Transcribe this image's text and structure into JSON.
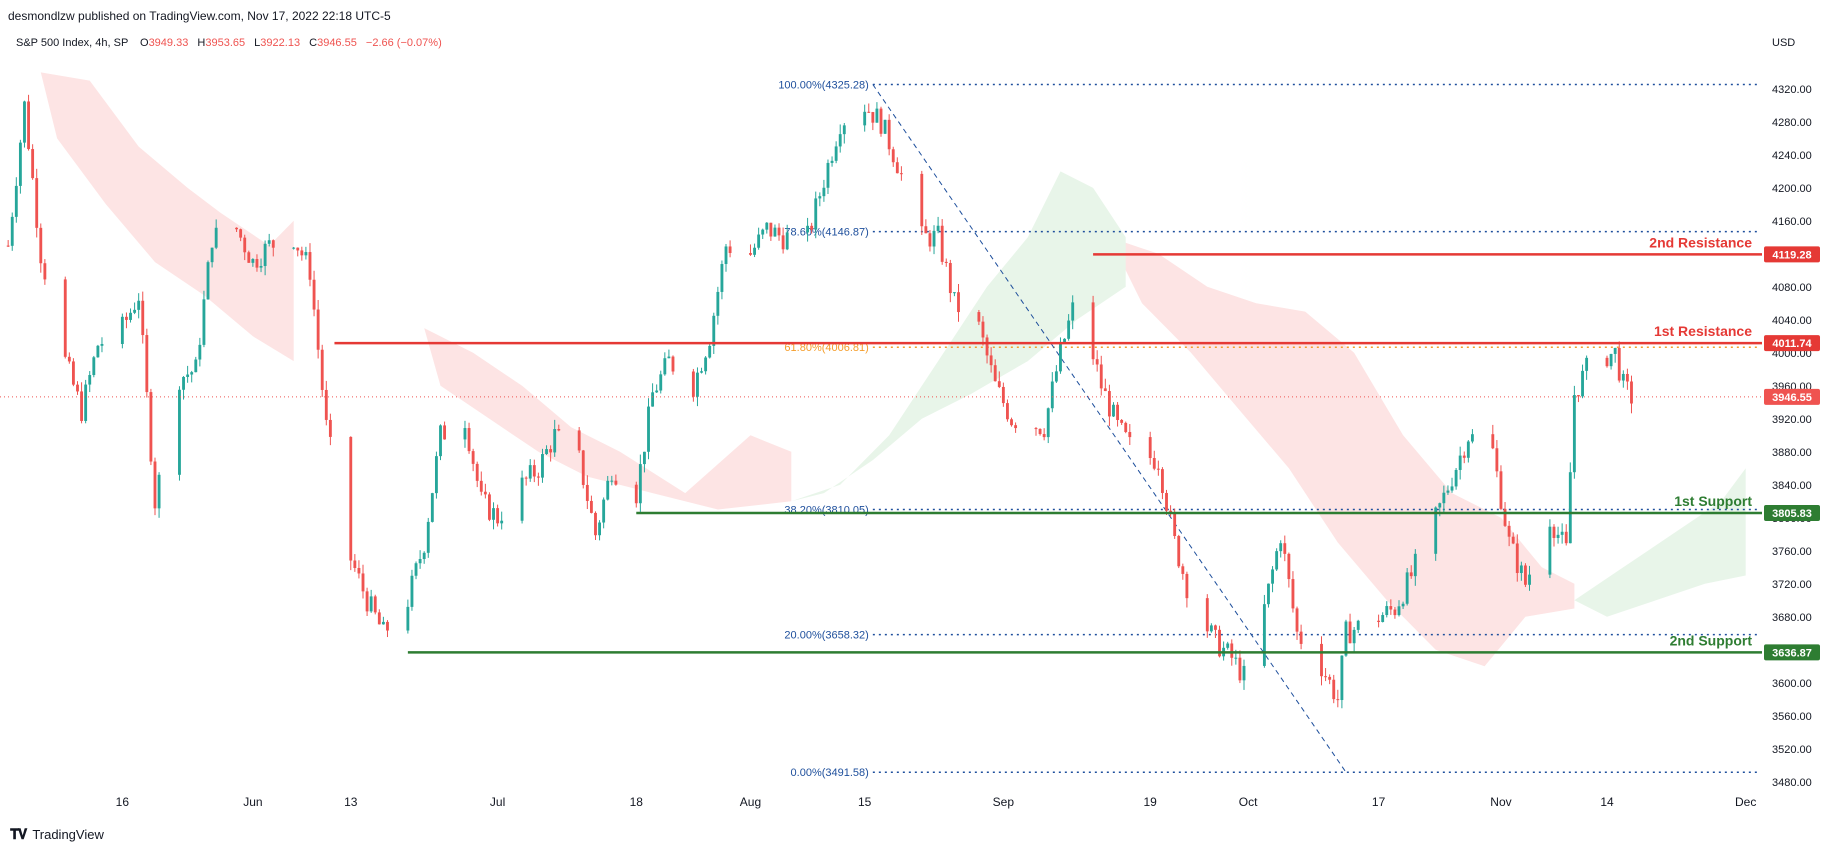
{
  "header": {
    "published": "desmondlzw published on TradingView.com, Nov 17, 2022 22:18 UTC-5"
  },
  "footer": {
    "brand": "TradingView"
  },
  "colors": {
    "up": "#26a69a",
    "down": "#ef5350",
    "cloud_up": "#e8f5e9",
    "cloud_down": "#fde4e4",
    "resistance": "#e53935",
    "support": "#2e7d32",
    "fib": "#1e4f9c",
    "fib_618": "#f59d2a"
  },
  "chart_data": {
    "type": "candlestick",
    "symbol_line": {
      "symbol": "S&P 500 Index, 4h, SP",
      "o_label": "O",
      "o": "3949.33",
      "h_label": "H",
      "h": "3953.65",
      "l_label": "L",
      "l": "3922.13",
      "c_label": "C",
      "c": "3946.55",
      "change": "−2.66 (−0.07%)"
    },
    "currency": "USD",
    "y_range": [
      3470,
      4355
    ],
    "y_ticks": [
      "4320.00",
      "4280.00",
      "4240.00",
      "4200.00",
      "4160.00",
      "4120.00",
      "4080.00",
      "4040.00",
      "4000.00",
      "3960.00",
      "3920.00",
      "3880.00",
      "3840.00",
      "3800.00",
      "3760.00",
      "3720.00",
      "3680.00",
      "3640.00",
      "3600.00",
      "3560.00",
      "3520.00",
      "3480.00"
    ],
    "x_range": [
      "2022-05-01",
      "2022-12-03"
    ],
    "x_ticks": [
      {
        "date": "2022-05-16",
        "label": "16"
      },
      {
        "date": "2022-06-01",
        "label": "Jun"
      },
      {
        "date": "2022-06-13",
        "label": "13"
      },
      {
        "date": "2022-07-01",
        "label": "Jul"
      },
      {
        "date": "2022-07-18",
        "label": "18"
      },
      {
        "date": "2022-08-01",
        "label": "Aug"
      },
      {
        "date": "2022-08-15",
        "label": "15"
      },
      {
        "date": "2022-09-01",
        "label": "Sep"
      },
      {
        "date": "2022-09-19",
        "label": "19"
      },
      {
        "date": "2022-10-01",
        "label": "Oct"
      },
      {
        "date": "2022-10-17",
        "label": "17"
      },
      {
        "date": "2022-11-01",
        "label": "Nov"
      },
      {
        "date": "2022-11-14",
        "label": "14"
      },
      {
        "date": "2022-12-01",
        "label": "Dec"
      }
    ],
    "price_path": [
      [
        "2022-05-02",
        4130
      ],
      [
        "2022-05-04",
        4300
      ],
      [
        "2022-05-06",
        4120
      ],
      [
        "2022-05-09",
        3990
      ],
      [
        "2022-05-11",
        3930
      ],
      [
        "2022-05-13",
        4010
      ],
      [
        "2022-05-16",
        4030
      ],
      [
        "2022-05-18",
        4070
      ],
      [
        "2022-05-20",
        3820
      ],
      [
        "2022-05-23",
        3970
      ],
      [
        "2022-05-25",
        3980
      ],
      [
        "2022-05-27",
        4140
      ],
      [
        "2022-05-30",
        4150
      ],
      [
        "2022-06-01",
        4110
      ],
      [
        "2022-06-03",
        4130
      ],
      [
        "2022-06-06",
        4140
      ],
      [
        "2022-06-08",
        4100
      ],
      [
        "2022-06-10",
        3910
      ],
      [
        "2022-06-13",
        3750
      ],
      [
        "2022-06-15",
        3700
      ],
      [
        "2022-06-17",
        3660
      ],
      [
        "2022-06-20",
        3700
      ],
      [
        "2022-06-22",
        3770
      ],
      [
        "2022-06-24",
        3900
      ],
      [
        "2022-06-27",
        3920
      ],
      [
        "2022-06-29",
        3820
      ],
      [
        "2022-07-01",
        3800
      ],
      [
        "2022-07-04",
        3840
      ],
      [
        "2022-07-06",
        3860
      ],
      [
        "2022-07-08",
        3900
      ],
      [
        "2022-07-11",
        3870
      ],
      [
        "2022-07-13",
        3780
      ],
      [
        "2022-07-15",
        3860
      ],
      [
        "2022-07-18",
        3830
      ],
      [
        "2022-07-20",
        3950
      ],
      [
        "2022-07-22",
        3990
      ],
      [
        "2022-07-25",
        3960
      ],
      [
        "2022-07-27",
        4020
      ],
      [
        "2022-07-29",
        4130
      ],
      [
        "2022-08-01",
        4120
      ],
      [
        "2022-08-03",
        4150
      ],
      [
        "2022-08-05",
        4140
      ],
      [
        "2022-08-08",
        4140
      ],
      [
        "2022-08-10",
        4210
      ],
      [
        "2022-08-12",
        4280
      ],
      [
        "2022-08-15",
        4300
      ],
      [
        "2022-08-17",
        4280
      ],
      [
        "2022-08-19",
        4230
      ],
      [
        "2022-08-22",
        4140
      ],
      [
        "2022-08-24",
        4140
      ],
      [
        "2022-08-26",
        4060
      ],
      [
        "2022-08-29",
        4030
      ],
      [
        "2022-08-31",
        3960
      ],
      [
        "2022-09-02",
        3920
      ],
      [
        "2022-09-06",
        3910
      ],
      [
        "2022-09-08",
        4000
      ],
      [
        "2022-09-10",
        4070
      ],
      [
        "2022-09-13",
        3960
      ],
      [
        "2022-09-15",
        3910
      ],
      [
        "2022-09-17",
        3880
      ],
      [
        "2022-09-20",
        3870
      ],
      [
        "2022-09-22",
        3770
      ],
      [
        "2022-09-24",
        3700
      ],
      [
        "2022-09-27",
        3650
      ],
      [
        "2022-09-29",
        3630
      ],
      [
        "2022-10-01",
        3600
      ],
      [
        "2022-10-03",
        3690
      ],
      [
        "2022-10-05",
        3780
      ],
      [
        "2022-10-07",
        3660
      ],
      [
        "2022-10-10",
        3620
      ],
      [
        "2022-10-12",
        3580
      ],
      [
        "2022-10-13",
        3660
      ],
      [
        "2022-10-17",
        3680
      ],
      [
        "2022-10-19",
        3690
      ],
      [
        "2022-10-21",
        3730
      ],
      [
        "2022-10-24",
        3800
      ],
      [
        "2022-10-26",
        3850
      ],
      [
        "2022-10-28",
        3900
      ],
      [
        "2022-10-31",
        3880
      ],
      [
        "2022-11-02",
        3770
      ],
      [
        "2022-11-04",
        3720
      ],
      [
        "2022-11-07",
        3800
      ],
      [
        "2022-11-09",
        3760
      ],
      [
        "2022-11-10",
        3950
      ],
      [
        "2022-11-12",
        3990
      ],
      [
        "2022-11-15",
        4000
      ],
      [
        "2022-11-16",
        3960
      ],
      [
        "2022-11-17",
        3946
      ]
    ],
    "candle_stride_days": 0.5,
    "fib_levels": [
      {
        "label": "100.00%(4325.28)",
        "price": 4325.28
      },
      {
        "label": "78.60%(4146.87)",
        "price": 4146.87
      },
      {
        "label": "61.80%(4006.81)",
        "price": 4006.81
      },
      {
        "label": "38.20%(3810.05)",
        "price": 3810.05
      },
      {
        "label": "20.00%(3658.32)",
        "price": 3658.32
      },
      {
        "label": "0.00%(3491.58)",
        "price": 3491.58
      }
    ],
    "fib_start": "2022-08-16",
    "fib_trend": [
      [
        "2022-08-16",
        4325.28
      ],
      [
        "2022-10-13",
        3491.58
      ]
    ],
    "levels": [
      {
        "name": "2nd Resistance",
        "value": "4119.28",
        "price": 4119.28,
        "start": "2022-09-12",
        "kind": "resistance"
      },
      {
        "name": "1st Resistance",
        "value": "4011.74",
        "price": 4011.74,
        "start": "2022-06-11",
        "kind": "resistance"
      },
      {
        "name": "1st Support",
        "value": "3805.83",
        "price": 3805.83,
        "start": "2022-07-18",
        "kind": "support"
      },
      {
        "name": "2nd Support",
        "value": "3636.87",
        "price": 3636.87,
        "start": "2022-06-20",
        "kind": "support"
      }
    ],
    "last_price": {
      "value": "3946.55",
      "price": 3946.55
    },
    "cloud_down": [
      [
        [
          "2022-05-06",
          4340
        ],
        [
          "2022-05-12",
          4330
        ],
        [
          "2022-05-18",
          4250
        ],
        [
          "2022-05-24",
          4200
        ],
        [
          "2022-05-28",
          4170
        ],
        [
          "2022-06-03",
          4130
        ],
        [
          "2022-06-06",
          4160
        ],
        [
          "2022-06-06",
          3990
        ],
        [
          "2022-06-01",
          4020
        ],
        [
          "2022-05-26",
          4070
        ],
        [
          "2022-05-20",
          4110
        ],
        [
          "2022-05-14",
          4180
        ],
        [
          "2022-05-08",
          4260
        ]
      ],
      [
        [
          "2022-06-22",
          4030
        ],
        [
          "2022-06-28",
          4000
        ],
        [
          "2022-07-04",
          3960
        ],
        [
          "2022-07-10",
          3910
        ],
        [
          "2022-07-16",
          3880
        ],
        [
          "2022-07-24",
          3830
        ],
        [
          "2022-08-01",
          3900
        ],
        [
          "2022-08-06",
          3880
        ],
        [
          "2022-08-06",
          3820
        ],
        [
          "2022-07-28",
          3810
        ],
        [
          "2022-07-20",
          3830
        ],
        [
          "2022-07-12",
          3850
        ],
        [
          "2022-07-06",
          3880
        ],
        [
          "2022-06-30",
          3920
        ],
        [
          "2022-06-24",
          3960
        ]
      ],
      [
        [
          "2022-09-14",
          4140
        ],
        [
          "2022-09-20",
          4120
        ],
        [
          "2022-09-26",
          4080
        ],
        [
          "2022-10-02",
          4060
        ],
        [
          "2022-10-08",
          4050
        ],
        [
          "2022-10-14",
          4000
        ],
        [
          "2022-10-20",
          3900
        ],
        [
          "2022-10-26",
          3830
        ],
        [
          "2022-11-01",
          3800
        ],
        [
          "2022-11-06",
          3740
        ],
        [
          "2022-11-10",
          3720
        ],
        [
          "2022-11-10",
          3690
        ],
        [
          "2022-11-04",
          3680
        ],
        [
          "2022-10-30",
          3620
        ],
        [
          "2022-10-24",
          3640
        ],
        [
          "2022-10-18",
          3700
        ],
        [
          "2022-10-12",
          3770
        ],
        [
          "2022-10-06",
          3860
        ],
        [
          "2022-09-30",
          3930
        ],
        [
          "2022-09-24",
          4000
        ],
        [
          "2022-09-18",
          4060
        ]
      ]
    ],
    "cloud_up": [
      [
        [
          "2022-08-06",
          3820
        ],
        [
          "2022-08-12",
          3840
        ],
        [
          "2022-08-18",
          3900
        ],
        [
          "2022-08-24",
          3990
        ],
        [
          "2022-08-30",
          4080
        ],
        [
          "2022-09-04",
          4140
        ],
        [
          "2022-09-08",
          4220
        ],
        [
          "2022-09-12",
          4200
        ],
        [
          "2022-09-16",
          4140
        ],
        [
          "2022-09-16",
          4080
        ],
        [
          "2022-09-10",
          4040
        ],
        [
          "2022-09-04",
          3990
        ],
        [
          "2022-08-28",
          3950
        ],
        [
          "2022-08-22",
          3920
        ],
        [
          "2022-08-16",
          3870
        ],
        [
          "2022-08-10",
          3830
        ]
      ],
      [
        [
          "2022-11-10",
          3700
        ],
        [
          "2022-11-16",
          3740
        ],
        [
          "2022-11-22",
          3780
        ],
        [
          "2022-11-28",
          3820
        ],
        [
          "2022-12-01",
          3860
        ],
        [
          "2022-12-01",
          3730
        ],
        [
          "2022-11-26",
          3720
        ],
        [
          "2022-11-20",
          3700
        ],
        [
          "2022-11-14",
          3680
        ]
      ]
    ]
  }
}
